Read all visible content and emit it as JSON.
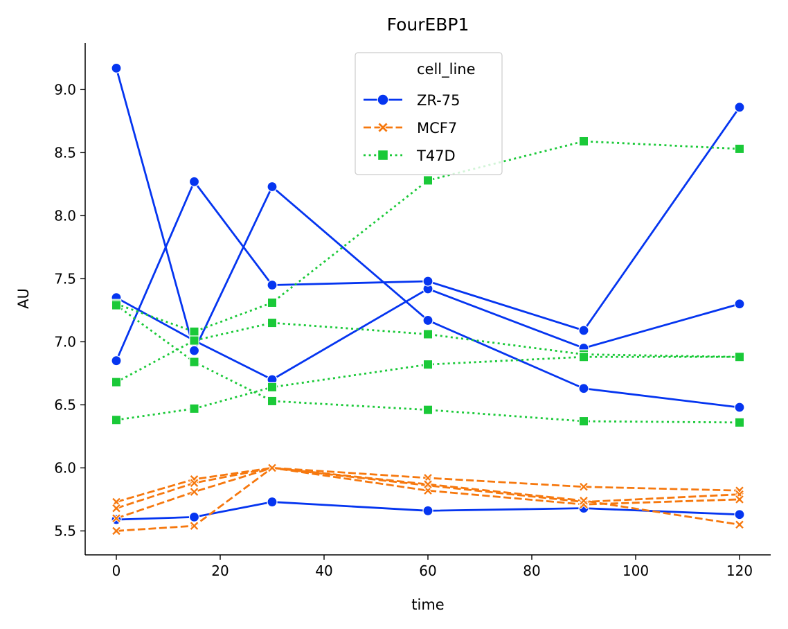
{
  "chart_data": {
    "type": "line",
    "title": "FourEBP1",
    "xlabel": "time",
    "ylabel": "AU",
    "xlim": [
      -6,
      126
    ],
    "ylim": [
      5.31,
      9.37
    ],
    "x_ticks": [
      0,
      20,
      40,
      60,
      80,
      100,
      120
    ],
    "x_tick_labels": [
      "0",
      "20",
      "40",
      "60",
      "80",
      "100",
      "120"
    ],
    "y_ticks": [
      5.5,
      6.0,
      6.5,
      7.0,
      7.5,
      8.0,
      8.5,
      9.0
    ],
    "y_tick_labels": [
      "5.5",
      "6.0",
      "6.5",
      "7.0",
      "7.5",
      "8.0",
      "8.5",
      "9.0"
    ],
    "grid": false,
    "legend": {
      "title": "cell_line",
      "position": "upper-center",
      "entries": [
        "ZR-75",
        "MCF7",
        "T47D"
      ]
    },
    "series": [
      {
        "name": "ZR-75",
        "color": "#0535f0",
        "line_style": "solid",
        "marker": "circle",
        "lines": [
          {
            "x": [
              0,
              15,
              30,
              60,
              90,
              120
            ],
            "y": [
              9.17,
              6.93,
              8.23,
              7.17,
              6.63,
              6.48
            ]
          },
          {
            "x": [
              0,
              15,
              30,
              60,
              90,
              120
            ],
            "y": [
              7.35,
              7.01,
              6.7,
              7.42,
              6.95,
              7.3
            ]
          },
          {
            "x": [
              0,
              15,
              30,
              60,
              90,
              120
            ],
            "y": [
              6.85,
              8.27,
              7.45,
              7.48,
              7.09,
              8.86
            ]
          },
          {
            "x": [
              0,
              15,
              30,
              60,
              90,
              120
            ],
            "y": [
              5.59,
              5.61,
              5.73,
              5.66,
              5.68,
              5.63
            ]
          }
        ]
      },
      {
        "name": "MCF7",
        "color": "#f6780e",
        "line_style": "dashed",
        "marker": "x",
        "lines": [
          {
            "x": [
              0,
              15,
              30,
              60,
              90,
              120
            ],
            "y": [
              5.73,
              5.91,
              6.0,
              5.92,
              5.85,
              5.82
            ]
          },
          {
            "x": [
              0,
              15,
              30,
              60,
              90,
              120
            ],
            "y": [
              5.68,
              5.88,
              6.0,
              5.86,
              5.73,
              5.79
            ]
          },
          {
            "x": [
              0,
              15,
              30,
              60,
              90,
              120
            ],
            "y": [
              5.6,
              5.81,
              6.0,
              5.82,
              5.71,
              5.75
            ]
          },
          {
            "x": [
              0,
              15,
              30,
              60,
              90,
              120
            ],
            "y": [
              5.5,
              5.54,
              6.0,
              5.87,
              5.74,
              5.55
            ]
          }
        ]
      },
      {
        "name": "T47D",
        "color": "#1ac938",
        "line_style": "dotted",
        "marker": "square",
        "lines": [
          {
            "x": [
              0,
              15,
              30,
              60,
              90,
              120
            ],
            "y": [
              7.3,
              7.08,
              7.31,
              8.28,
              8.59,
              8.53
            ]
          },
          {
            "x": [
              0,
              15,
              30,
              60,
              90,
              120
            ],
            "y": [
              7.29,
              6.84,
              6.53,
              6.46,
              6.37,
              6.36
            ]
          },
          {
            "x": [
              0,
              15,
              30,
              60,
              90,
              120
            ],
            "y": [
              6.68,
              7.01,
              7.15,
              7.06,
              6.9,
              6.88
            ]
          },
          {
            "x": [
              0,
              15,
              30,
              60,
              90,
              120
            ],
            "y": [
              6.38,
              6.47,
              6.64,
              6.82,
              6.88,
              6.88
            ]
          }
        ]
      }
    ]
  }
}
